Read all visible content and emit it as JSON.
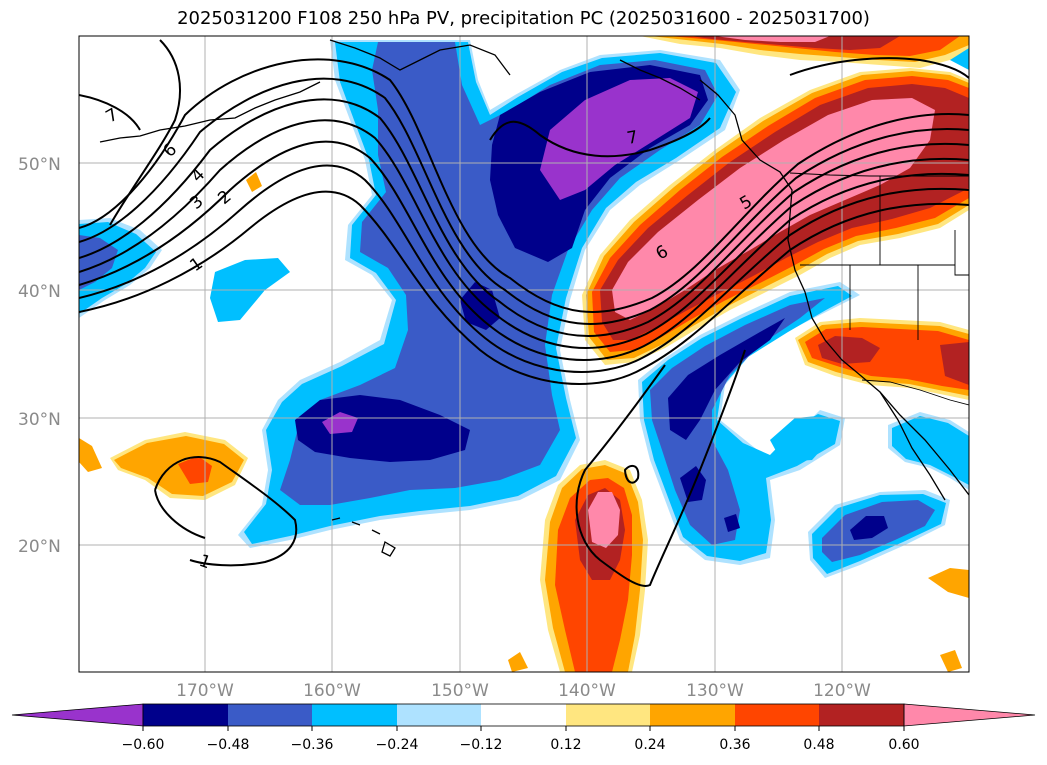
{
  "title": "2025031200 F108 250 hPa PV, precipitation PC (2025031600 - 2025031700)",
  "map": {
    "lat_labels": [
      "50°N",
      "40°N",
      "30°N",
      "20°N"
    ],
    "lon_labels": [
      "170°W",
      "160°W",
      "150°W",
      "140°W",
      "130°W",
      "120°W"
    ],
    "grid": true,
    "pv_contour_labels": [
      "7",
      "6",
      "4",
      "3",
      "2",
      "1",
      "1",
      "7",
      "6",
      "5"
    ]
  },
  "colorbar": {
    "ticks": [
      "−0.60",
      "−0.48",
      "−0.36",
      "−0.24",
      "−0.12",
      "0.12",
      "0.24",
      "0.36",
      "0.48",
      "0.60"
    ],
    "colors": [
      "#9933cc",
      "#00008b",
      "#3a5bc7",
      "#00bfff",
      "#aee2ff",
      "#ffffff",
      "#ffe680",
      "#ffa500",
      "#ff4500",
      "#b22222",
      "#ff88aa"
    ],
    "extend": "both"
  }
}
